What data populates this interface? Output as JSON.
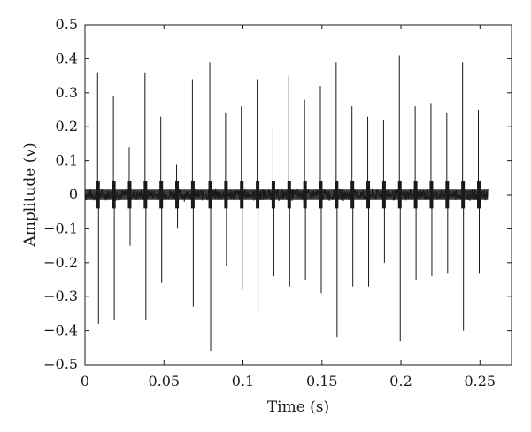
{
  "chart_data": {
    "type": "line",
    "title": "",
    "xlabel": "Time (s)",
    "ylabel": "Amplitude (v)",
    "xlim": [
      0,
      0.27
    ],
    "ylim": [
      -0.5,
      0.5
    ],
    "grid": false,
    "x_ticks": [
      0,
      0.05,
      0.1,
      0.15,
      0.2,
      0.25
    ],
    "x_tick_labels": [
      "0",
      "0.05",
      "0.1",
      "0.15",
      "0.2",
      "0.25"
    ],
    "y_ticks": [
      0.5,
      0.4,
      0.3,
      0.2,
      0.1,
      0,
      -0.1,
      -0.2,
      -0.3,
      -0.4,
      -0.5
    ],
    "y_tick_labels": [
      "0.5",
      "0.4",
      "0.3",
      "0.2",
      "0.1",
      "0",
      "−0.1",
      "−0.2",
      "−0.3",
      "−0.4",
      "−0.5"
    ],
    "signal_span": [
      0.0,
      0.255
    ],
    "noise_band": [
      -0.02,
      0.02
    ],
    "series": [
      {
        "color": "#1a1a1a",
        "spikes": [
          {
            "t": 0.008,
            "max": 0.36,
            "min": -0.38
          },
          {
            "t": 0.018,
            "max": 0.29,
            "min": -0.37
          },
          {
            "t": 0.028,
            "max": 0.14,
            "min": -0.15
          },
          {
            "t": 0.038,
            "max": 0.36,
            "min": -0.37
          },
          {
            "t": 0.048,
            "max": 0.23,
            "min": -0.26
          },
          {
            "t": 0.058,
            "max": 0.09,
            "min": -0.1
          },
          {
            "t": 0.068,
            "max": 0.34,
            "min": -0.33
          },
          {
            "t": 0.079,
            "max": 0.39,
            "min": -0.46
          },
          {
            "t": 0.089,
            "max": 0.24,
            "min": -0.21
          },
          {
            "t": 0.099,
            "max": 0.26,
            "min": -0.28
          },
          {
            "t": 0.109,
            "max": 0.34,
            "min": -0.34
          },
          {
            "t": 0.119,
            "max": 0.2,
            "min": -0.24
          },
          {
            "t": 0.129,
            "max": 0.35,
            "min": -0.27
          },
          {
            "t": 0.139,
            "max": 0.28,
            "min": -0.25
          },
          {
            "t": 0.149,
            "max": 0.32,
            "min": -0.29
          },
          {
            "t": 0.159,
            "max": 0.39,
            "min": -0.42
          },
          {
            "t": 0.169,
            "max": 0.26,
            "min": -0.27
          },
          {
            "t": 0.179,
            "max": 0.23,
            "min": -0.27
          },
          {
            "t": 0.189,
            "max": 0.22,
            "min": -0.2
          },
          {
            "t": 0.199,
            "max": 0.41,
            "min": -0.43
          },
          {
            "t": 0.209,
            "max": 0.26,
            "min": -0.25
          },
          {
            "t": 0.219,
            "max": 0.27,
            "min": -0.24
          },
          {
            "t": 0.229,
            "max": 0.24,
            "min": -0.23
          },
          {
            "t": 0.239,
            "max": 0.39,
            "min": -0.4
          },
          {
            "t": 0.249,
            "max": 0.25,
            "min": -0.23
          }
        ]
      }
    ]
  }
}
